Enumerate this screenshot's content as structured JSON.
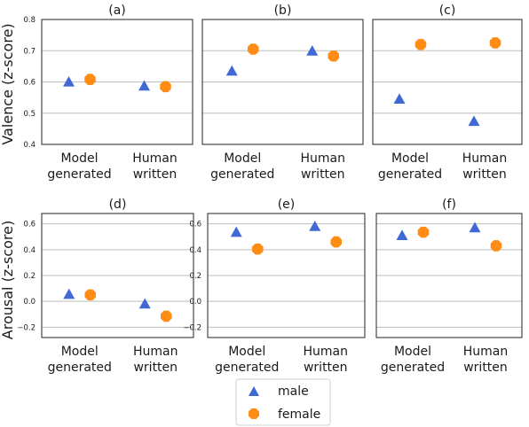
{
  "y_labels": [
    "Valence (z-score)",
    "Arousal (z-score)"
  ],
  "legend": {
    "placement": "bottom-center",
    "entries": [
      {
        "name": "male",
        "marker": "triangle",
        "color": "#4169d6"
      },
      {
        "name": "female",
        "marker": "octagon",
        "color": "#ff8c14"
      }
    ]
  },
  "chart_data": [
    {
      "type": "scatter",
      "panel": "(a)",
      "row": 0,
      "categories": [
        "Model\ngenerated",
        "Human\nwritten"
      ],
      "ylim": [
        0.4,
        0.8
      ],
      "yticks": [
        "0.4",
        "0.5",
        "0.6",
        "0.7",
        "0.8"
      ],
      "show_yticks": true,
      "grid": "horizontal",
      "series": [
        {
          "name": "male",
          "values": [
            0.598,
            0.585
          ]
        },
        {
          "name": "female",
          "values": [
            0.608,
            0.585
          ]
        }
      ]
    },
    {
      "type": "scatter",
      "panel": "(b)",
      "row": 0,
      "categories": [
        "Model\ngenerated",
        "Human\nwritten"
      ],
      "ylim": [
        0.4,
        0.8
      ],
      "yticks": [
        "0.4",
        "0.5",
        "0.6",
        "0.7",
        "0.8"
      ],
      "show_yticks": false,
      "grid": "horizontal",
      "series": [
        {
          "name": "male",
          "values": [
            0.633,
            0.697
          ]
        },
        {
          "name": "female",
          "values": [
            0.705,
            0.683
          ]
        }
      ]
    },
    {
      "type": "scatter",
      "panel": "(c)",
      "row": 0,
      "categories": [
        "Model\ngenerated",
        "Human\nwritten"
      ],
      "ylim": [
        0.4,
        0.8
      ],
      "yticks": [
        "0.4",
        "0.5",
        "0.6",
        "0.7",
        "0.8"
      ],
      "show_yticks": false,
      "grid": "horizontal",
      "series": [
        {
          "name": "male",
          "values": [
            0.543,
            0.472
          ]
        },
        {
          "name": "female",
          "values": [
            0.72,
            0.725
          ]
        }
      ]
    },
    {
      "type": "scatter",
      "panel": "(d)",
      "row": 1,
      "categories": [
        "Model\ngenerated",
        "Human\nwritten"
      ],
      "ylim": [
        -0.28,
        0.68
      ],
      "yticks": [
        "−0.2",
        "0.0",
        "0.2",
        "0.4",
        "0.6"
      ],
      "show_yticks": true,
      "grid": "horizontal",
      "series": [
        {
          "name": "male",
          "values": [
            0.05,
            -0.025
          ]
        },
        {
          "name": "female",
          "values": [
            0.05,
            -0.115
          ]
        }
      ]
    },
    {
      "type": "scatter",
      "panel": "(e)",
      "row": 1,
      "categories": [
        "Model\ngenerated",
        "Human\nwritten"
      ],
      "ylim": [
        -0.28,
        0.68
      ],
      "yticks": [
        "−0.2",
        "0.0",
        "0.2",
        "0.4",
        "0.6"
      ],
      "show_yticks": true,
      "grid": "horizontal",
      "series": [
        {
          "name": "male",
          "values": [
            0.53,
            0.575
          ]
        },
        {
          "name": "female",
          "values": [
            0.405,
            0.46
          ]
        }
      ]
    },
    {
      "type": "scatter",
      "panel": "(f)",
      "row": 1,
      "categories": [
        "Model\ngenerated",
        "Human\nwritten"
      ],
      "ylim": [
        -0.28,
        0.68
      ],
      "yticks": [
        "−0.2",
        "0.0",
        "0.2",
        "0.4",
        "0.6"
      ],
      "show_yticks": false,
      "grid": "horizontal",
      "series": [
        {
          "name": "male",
          "values": [
            0.505,
            0.565
          ]
        },
        {
          "name": "female",
          "values": [
            0.535,
            0.43
          ]
        }
      ]
    }
  ]
}
